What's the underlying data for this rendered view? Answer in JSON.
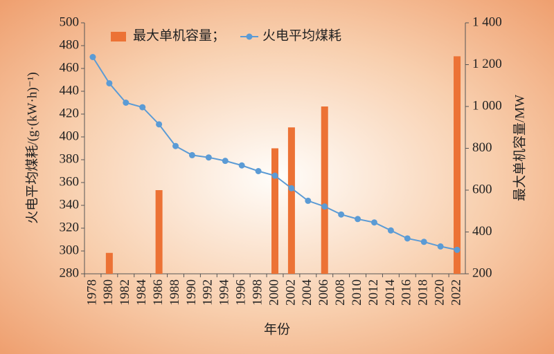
{
  "chart_data": {
    "type": "bar+line",
    "categories": [
      "1978",
      "1980",
      "1982",
      "1984",
      "1986",
      "1988",
      "1990",
      "1992",
      "1994",
      "1996",
      "1998",
      "2000",
      "2002",
      "2004",
      "2006",
      "2008",
      "2010",
      "2012",
      "2014",
      "2016",
      "2018",
      "2020",
      "2022"
    ],
    "series": [
      {
        "name": "最大单机容量；",
        "type": "bar",
        "axis": "y2",
        "color": "#ec7235",
        "values": [
          null,
          300,
          null,
          null,
          600,
          null,
          null,
          null,
          null,
          null,
          null,
          800,
          900,
          null,
          1000,
          null,
          null,
          null,
          null,
          null,
          null,
          null,
          1240
        ]
      },
      {
        "name": "火电平均煤耗",
        "type": "line",
        "axis": "y",
        "color": "#5b9bd5",
        "values": [
          470,
          447,
          430,
          426,
          411,
          392,
          384,
          382,
          379,
          375,
          370,
          366,
          355,
          344,
          339,
          332,
          328,
          325,
          318,
          311,
          308,
          304,
          301
        ]
      }
    ],
    "xlabel": "年份",
    "ylabel": "火电平均煤耗/(g·(kW·h)⁻¹)",
    "y2label": "最大单机容量/MW",
    "ylim": [
      280,
      500
    ],
    "yticks": [
      280,
      300,
      320,
      340,
      360,
      380,
      400,
      420,
      440,
      460,
      480,
      500
    ],
    "y2lim": [
      200,
      1400
    ],
    "y2ticks": [
      200,
      400,
      600,
      800,
      {
        "value": 1000,
        "label": "1 000"
      },
      {
        "value": 1200,
        "label": "1 200"
      },
      {
        "value": 1400,
        "label": "1 400"
      }
    ],
    "legend": "top"
  }
}
